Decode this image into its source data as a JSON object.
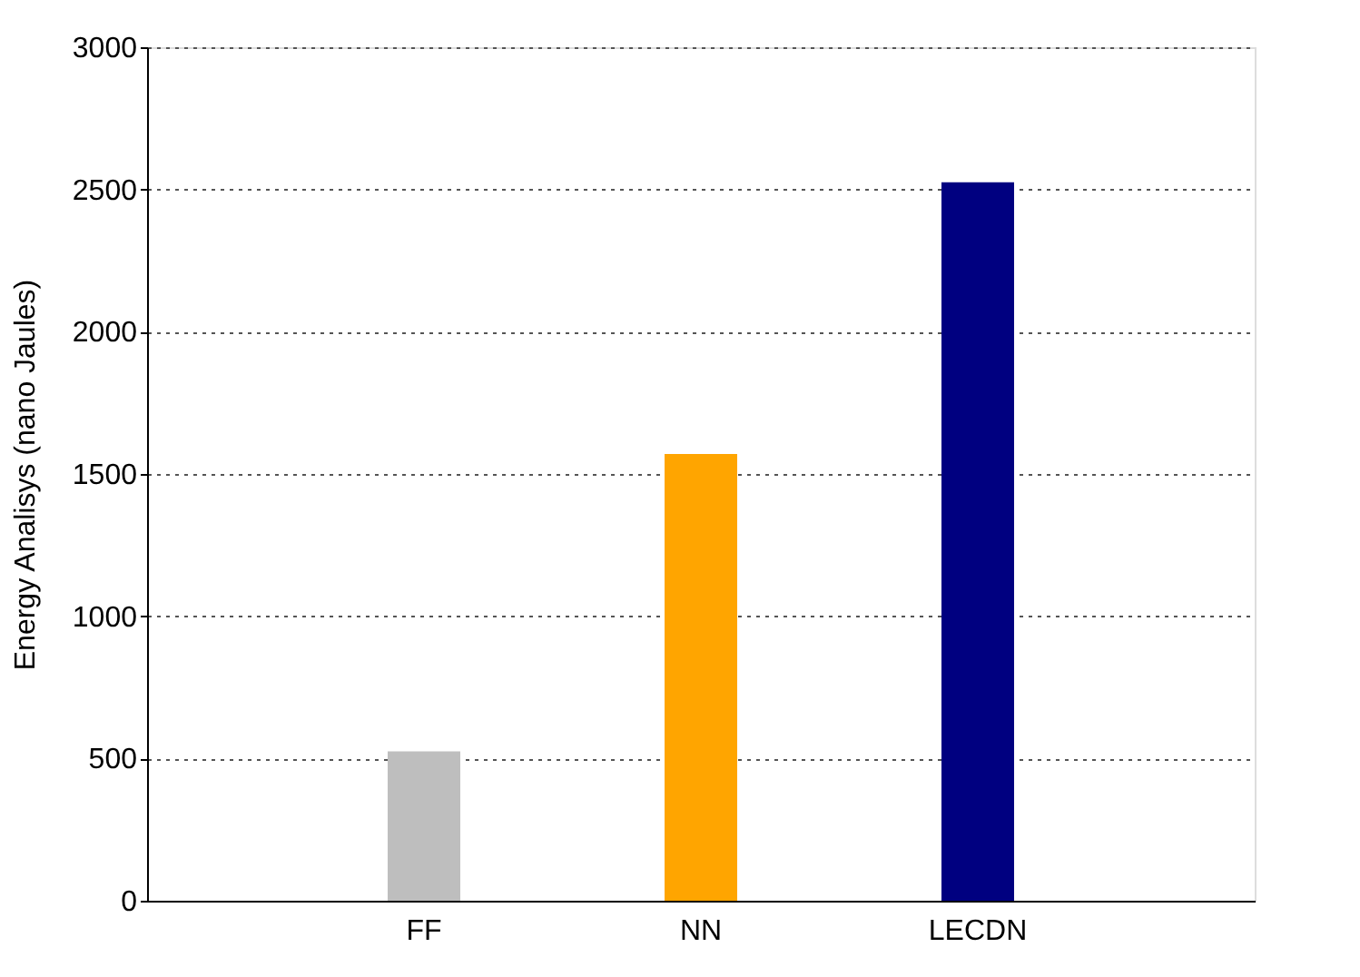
{
  "chart_data": {
    "type": "bar",
    "ylabel": "Energy Analisys (nano Jaules)",
    "categories": [
      "FF",
      "NN",
      "LECDN"
    ],
    "values": [
      525,
      1570,
      2525
    ],
    "colors": [
      "#bebebe",
      "#ffa500",
      "#000080"
    ],
    "ylim": [
      0,
      3000
    ],
    "yticks": [
      0,
      500,
      1000,
      1500,
      2000,
      2500,
      3000
    ],
    "grid": "y",
    "legend": false
  }
}
